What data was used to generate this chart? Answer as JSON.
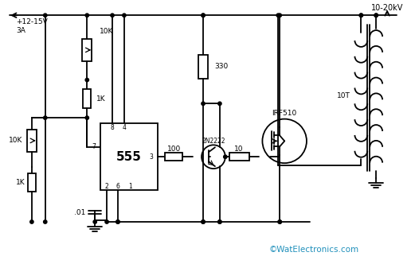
{
  "background_color": "#ffffff",
  "line_color": "#000000",
  "watermark_color": "#2090bb",
  "watermark": "©WatElectronics.com",
  "title_label": "10-20kV",
  "supply_label": "+12-15V\n3A",
  "r1_label": "10K",
  "r2_label": "1K",
  "r3_label": "10K",
  "r4_label": "1K",
  "r5_label": "330",
  "r6_label": "100",
  "r7_label": "10",
  "c1_label": ".01",
  "ic_label": "555",
  "q1_label": "2N2222",
  "q2_label": "IRF510",
  "transformer_label": "10T",
  "pin7": "7",
  "pin8": "8",
  "pin4": "4",
  "pin3": "3",
  "pin2": "2",
  "pin6": "6",
  "pin1": "1"
}
